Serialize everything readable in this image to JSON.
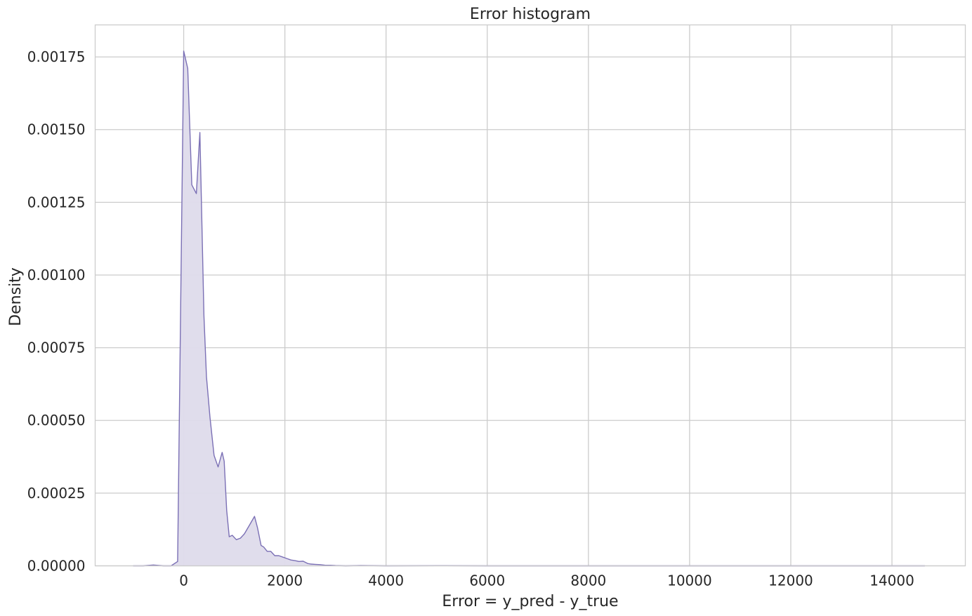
{
  "chart_data": {
    "type": "area",
    "title": "Error histogram",
    "xlabel": "Error = y_pred - y_true",
    "ylabel": "Density",
    "xlim": [
      -1750,
      15450
    ],
    "ylim": [
      0,
      0.00186
    ],
    "xticks": [
      0,
      2000,
      4000,
      6000,
      8000,
      10000,
      12000,
      14000
    ],
    "xtick_labels": [
      "0",
      "2000",
      "4000",
      "6000",
      "8000",
      "10000",
      "12000",
      "14000"
    ],
    "yticks": [
      0,
      0.00025,
      0.0005,
      0.00075,
      0.001,
      0.00125,
      0.0015,
      0.00175
    ],
    "ytick_labels": [
      "0.00000",
      "0.00025",
      "0.00050",
      "0.00075",
      "0.00100",
      "0.00125",
      "0.00150",
      "0.00175"
    ],
    "grid": true,
    "colors": {
      "line": "#7b70b5",
      "fill": "#dedbeb"
    },
    "series": [
      {
        "x": [
          -1000,
          -800,
          -600,
          -400,
          -250,
          -120,
          0,
          80,
          160,
          250,
          320,
          400,
          450,
          520,
          600,
          680,
          760,
          800,
          850,
          900,
          960,
          1040,
          1120,
          1200,
          1300,
          1400,
          1460,
          1530,
          1580,
          1650,
          1720,
          1800,
          1880,
          1960,
          2040,
          2120,
          2200,
          2280,
          2360,
          2450,
          2520,
          2600,
          2700,
          2800,
          2900,
          3000,
          3200,
          3500,
          4000,
          5000,
          6000,
          8000,
          10000,
          12000,
          14000,
          14650
        ],
        "y": [
          0,
          0,
          3e-06,
          0,
          0,
          1.5e-05,
          0.00177,
          0.00171,
          0.00131,
          0.00128,
          0.00149,
          0.00086,
          0.00065,
          0.00051,
          0.00038,
          0.00034,
          0.00039,
          0.00036,
          0.00019,
          0.0001,
          0.000105,
          9e-05,
          9.5e-05,
          0.00011,
          0.00014,
          0.00017,
          0.00013,
          7e-05,
          6.5e-05,
          5e-05,
          5e-05,
          3.5e-05,
          3.5e-05,
          3e-05,
          2.5e-05,
          2e-05,
          1.8e-05,
          1.5e-05,
          1.6e-05,
          8e-06,
          6e-06,
          5e-06,
          4e-06,
          2e-06,
          2e-06,
          1e-06,
          0,
          1e-06,
          0,
          5e-07,
          0,
          0,
          0,
          0,
          0,
          0
        ]
      }
    ]
  }
}
